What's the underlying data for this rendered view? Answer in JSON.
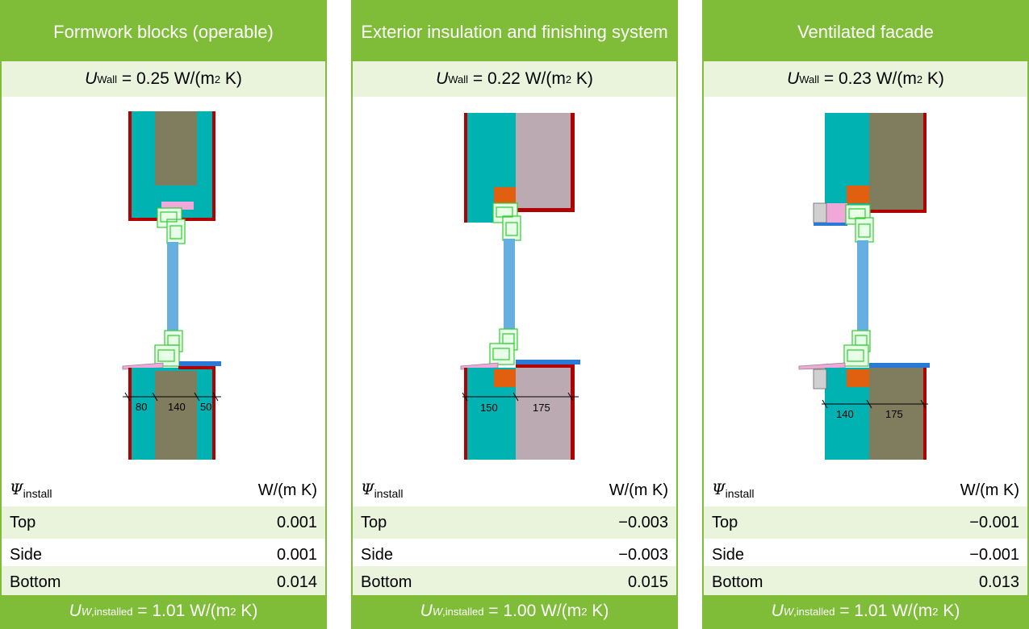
{
  "colors": {
    "accent_green": "#7fbd39",
    "light_green": "#eaf4dc"
  },
  "panels": [
    {
      "title": "Formwork blocks (operable)",
      "u_wall_symbol": "U",
      "u_wall_sub": "Wall",
      "u_wall_value": "= 0.25 W/(m",
      "u_wall_sup": "2",
      "u_wall_tail": "K)",
      "dimensions": [
        "80",
        "140",
        "50"
      ],
      "psi_symbol": "Ψ",
      "psi_sub": "install",
      "psi_unit": "W/(m K)",
      "rows": [
        {
          "label": "Top",
          "value": "0.001"
        },
        {
          "label": "Side",
          "value": "0.001"
        },
        {
          "label": "Bottom",
          "value": "0.014"
        }
      ],
      "footer_symbol": "U",
      "footer_sub_italic": "W",
      "footer_sub": ",installed",
      "footer_value": "= 1.01 W/(m",
      "footer_sup": "2",
      "footer_tail": "K)"
    },
    {
      "title": "Exterior insulation and finishing system",
      "u_wall_symbol": "U",
      "u_wall_sub": "Wall",
      "u_wall_value": "= 0.22 W/(m",
      "u_wall_sup": "2",
      "u_wall_tail": "K)",
      "dimensions": [
        "150",
        "175"
      ],
      "psi_symbol": "Ψ",
      "psi_sub": "install",
      "psi_unit": "W/(m K)",
      "rows": [
        {
          "label": "Top",
          "value": "−0.003"
        },
        {
          "label": "Side",
          "value": "−0.003"
        },
        {
          "label": "Bottom",
          "value": "0.015"
        }
      ],
      "footer_symbol": "U",
      "footer_sub_italic": "W",
      "footer_sub": ",installed",
      "footer_value": "= 1.00 W/(m",
      "footer_sup": "2",
      "footer_tail": "K)"
    },
    {
      "title": "Ventilated facade",
      "u_wall_symbol": "U",
      "u_wall_sub": "Wall",
      "u_wall_value": "= 0.23 W/(m",
      "u_wall_sup": "2",
      "u_wall_tail": "K)",
      "dimensions": [
        "140",
        "175"
      ],
      "psi_symbol": "Ψ",
      "psi_sub": "install",
      "psi_unit": "W/(m K)",
      "rows": [
        {
          "label": "Top",
          "value": "−0.001"
        },
        {
          "label": "Side",
          "value": "−0.001"
        },
        {
          "label": "Bottom",
          "value": "0.013"
        }
      ],
      "footer_symbol": "U",
      "footer_sub_italic": "W",
      "footer_sub": ",installed",
      "footer_value": "= 1.01 W/(m",
      "footer_sup": "2",
      "footer_tail": "K)"
    }
  ],
  "material_colors": {
    "concrete_teal": "#00b2b2",
    "insulation_brown": "#807d5f",
    "insulation_mauve": "#bcaab2",
    "render_red": "#b20000",
    "glass_blue": "#66afe0",
    "frame_green": "#33cc33",
    "seal_orange": "#e06010",
    "pink_seal": "#f0a8d8",
    "sill_blue": "#2a78d8",
    "cladding_grey": "#d0d0d0"
  }
}
